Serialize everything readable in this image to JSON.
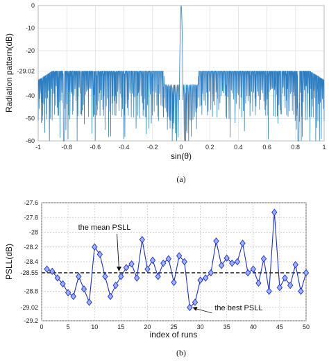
{
  "chart_data": [
    {
      "type": "line",
      "caption": "(a)",
      "xlabel": "sin(θ)",
      "ylabel": "Radiation pattern(dB)",
      "xlim": [
        -1,
        1
      ],
      "ylim": [
        -60,
        0
      ],
      "xticks": [
        "-1",
        "-0.8",
        "-0.6",
        "-0.4",
        "-0.2",
        "0",
        "0.2",
        "0.4",
        "0.6",
        "0.8",
        "1"
      ],
      "yticks": [
        "0",
        "-10",
        "-20",
        "-29.02",
        "-40",
        "-50",
        "-60"
      ],
      "ytick_values": [
        0,
        -10,
        -20,
        -29.02,
        -40,
        -50,
        -60
      ],
      "sidelobe_level": -29.02,
      "grid": true,
      "color": "#2e7fc1",
      "series": [
        {
          "key_points": [
            {
              "x": -1.0,
              "y": -33
            },
            {
              "x": -0.82,
              "y": -60
            },
            {
              "x": 0.0,
              "y": 0
            },
            {
              "x": 0.82,
              "y": -60
            },
            {
              "x": 1.0,
              "y": -33
            }
          ]
        }
      ]
    },
    {
      "type": "line",
      "caption": "(b)",
      "xlabel": "index of runs",
      "ylabel": "PSLL(dB)",
      "xlim": [
        0,
        50
      ],
      "ylim": [
        -29.2,
        -27.6
      ],
      "xticks": [
        "0",
        "5",
        "10",
        "15",
        "20",
        "25",
        "30",
        "35",
        "40",
        "45",
        "50"
      ],
      "yticks": [
        "-27.6",
        "-27.8",
        "-28",
        "-28.2",
        "-28.4",
        "-28.55",
        "-28.8",
        "-29.02",
        "-29.2"
      ],
      "ytick_values": [
        -27.6,
        -27.8,
        -28,
        -28.2,
        -28.4,
        -28.55,
        -28.8,
        -29.02,
        -29.2
      ],
      "grid": true,
      "color": "#1a2dd6",
      "mean_psll": -28.55,
      "series": [
        {
          "x": [
            1,
            2,
            3,
            4,
            5,
            6,
            7,
            8,
            9,
            10,
            11,
            12,
            13,
            14,
            15,
            16,
            17,
            18,
            19,
            20,
            21,
            22,
            23,
            24,
            25,
            26,
            27,
            28,
            29,
            30,
            31,
            32,
            33,
            34,
            35,
            36,
            37,
            38,
            39,
            40,
            41,
            42,
            43,
            44,
            45,
            46,
            47,
            48,
            49,
            50
          ],
          "values": [
            -28.5,
            -28.53,
            -28.62,
            -28.7,
            -28.82,
            -28.87,
            -28.6,
            -28.77,
            -28.95,
            -28.2,
            -28.3,
            -28.6,
            -28.87,
            -28.72,
            -28.6,
            -28.48,
            -28.43,
            -28.62,
            -28.1,
            -28.5,
            -28.38,
            -28.6,
            -28.42,
            -28.36,
            -28.68,
            -28.32,
            -28.4,
            -29.02,
            -28.95,
            -28.65,
            -28.62,
            -28.55,
            -28.12,
            -28.45,
            -28.35,
            -28.42,
            -28.4,
            -28.15,
            -28.55,
            -28.5,
            -28.69,
            -28.36,
            -28.8,
            -27.73,
            -28.75,
            -28.62,
            -28.72,
            -28.44,
            -28.8,
            -28.55
          ]
        }
      ],
      "annotations": [
        {
          "text": "the mean PSLL",
          "x": 14.5,
          "y": -28.55
        },
        {
          "text": "the best PSLL",
          "x": 28,
          "y": -29.02
        }
      ]
    }
  ]
}
